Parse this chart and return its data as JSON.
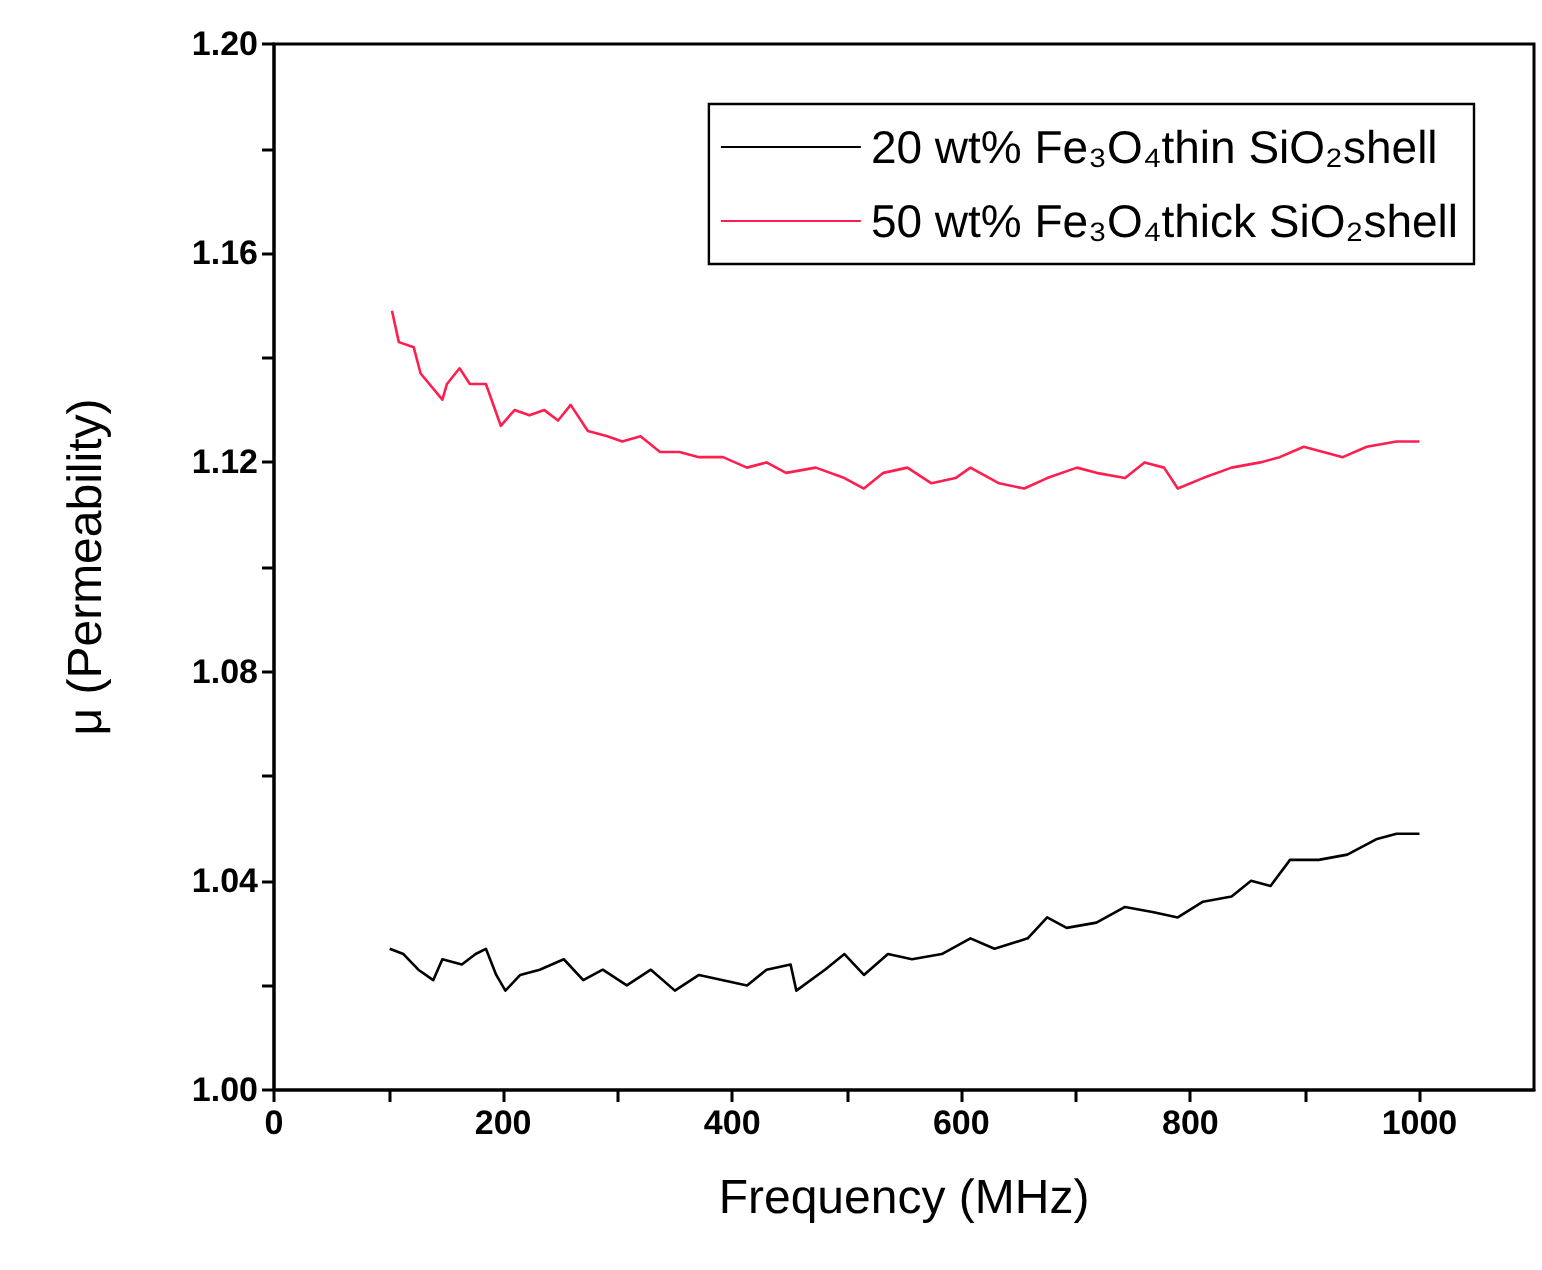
{
  "chart_data": {
    "type": "line",
    "xlabel": "Frequency (MHz)",
    "ylabel": "μ (Permeability)",
    "xlim": [
      0,
      1100
    ],
    "xticks": [
      0,
      {
        "value": 100,
        "label": null
      },
      200,
      {
        "value": 300,
        "label": null
      },
      400,
      {
        "value": 500,
        "label": null
      },
      600,
      {
        "value": 700,
        "label": null
      },
      800,
      {
        "value": 900,
        "label": null
      },
      1000
    ],
    "ylim": [
      1,
      1.2
    ],
    "yticks": [
      {
        "value": 1,
        "label": "1.00"
      },
      {
        "value": 1.02,
        "label": null
      },
      {
        "value": 1.04,
        "label": "1.04"
      },
      {
        "value": 1.06,
        "label": null
      },
      {
        "value": 1.08,
        "label": "1.08"
      },
      {
        "value": 1.1,
        "label": null
      },
      {
        "value": 1.12,
        "label": "1.12"
      },
      {
        "value": 1.14,
        "label": null
      },
      {
        "value": 1.16,
        "label": "1.16"
      },
      {
        "value": 1.18,
        "label": null
      },
      {
        "value": 1.2,
        "label": "1.20"
      }
    ],
    "grid": false,
    "legend": "top right",
    "marker": "none",
    "line_style": "solid",
    "series": [
      {
        "name": "20 wt% Fe₃O₄thin SiO₂shell",
        "color": "#000000",
        "x": [
          101,
          113,
          126,
          139,
          147,
          164,
          176,
          185,
          194,
          202,
          215,
          232,
          253,
          270,
          287,
          308,
          329,
          350,
          371,
          392,
          413,
          430,
          451,
          456,
          481,
          498,
          515,
          536,
          557,
          583,
          608,
          629,
          658,
          675,
          692,
          718,
          743,
          768,
          789,
          811,
          836,
          853,
          870,
          887,
          912,
          937,
          963,
          980,
          1000
        ],
        "values": [
          1.027,
          1.026,
          1.023,
          1.021,
          1.025,
          1.024,
          1.026,
          1.027,
          1.022,
          1.019,
          1.022,
          1.023,
          1.025,
          1.021,
          1.023,
          1.02,
          1.023,
          1.019,
          1.022,
          1.021,
          1.02,
          1.023,
          1.024,
          1.019,
          1.023,
          1.026,
          1.022,
          1.026,
          1.025,
          1.026,
          1.029,
          1.027,
          1.029,
          1.033,
          1.031,
          1.032,
          1.035,
          1.034,
          1.033,
          1.036,
          1.037,
          1.04,
          1.039,
          1.044,
          1.044,
          1.045,
          1.048,
          1.049,
          1.049
        ]
      },
      {
        "name": "50 wt% Fe₃O₄thick SiO₂shell",
        "color": "#ff1f4f",
        "x": [
          103,
          109,
          122,
          128,
          147,
          151,
          162,
          171,
          185,
          198,
          210,
          223,
          236,
          248,
          259,
          274,
          291,
          304,
          320,
          337,
          354,
          371,
          392,
          413,
          430,
          447,
          473,
          498,
          515,
          532,
          553,
          574,
          595,
          608,
          633,
          655,
          675,
          701,
          718,
          743,
          760,
          777,
          789,
          811,
          836,
          861,
          878,
          899,
          916,
          933,
          954,
          980,
          1000
        ],
        "values": [
          1.149,
          1.143,
          1.142,
          1.137,
          1.132,
          1.135,
          1.138,
          1.135,
          1.135,
          1.127,
          1.13,
          1.129,
          1.13,
          1.128,
          1.131,
          1.126,
          1.125,
          1.124,
          1.125,
          1.122,
          1.122,
          1.121,
          1.121,
          1.119,
          1.12,
          1.118,
          1.119,
          1.117,
          1.115,
          1.118,
          1.119,
          1.116,
          1.117,
          1.119,
          1.116,
          1.115,
          1.117,
          1.119,
          1.118,
          1.117,
          1.12,
          1.119,
          1.115,
          1.117,
          1.119,
          1.12,
          1.121,
          1.123,
          1.122,
          1.121,
          1.123,
          1.124,
          1.124
        ]
      }
    ]
  }
}
